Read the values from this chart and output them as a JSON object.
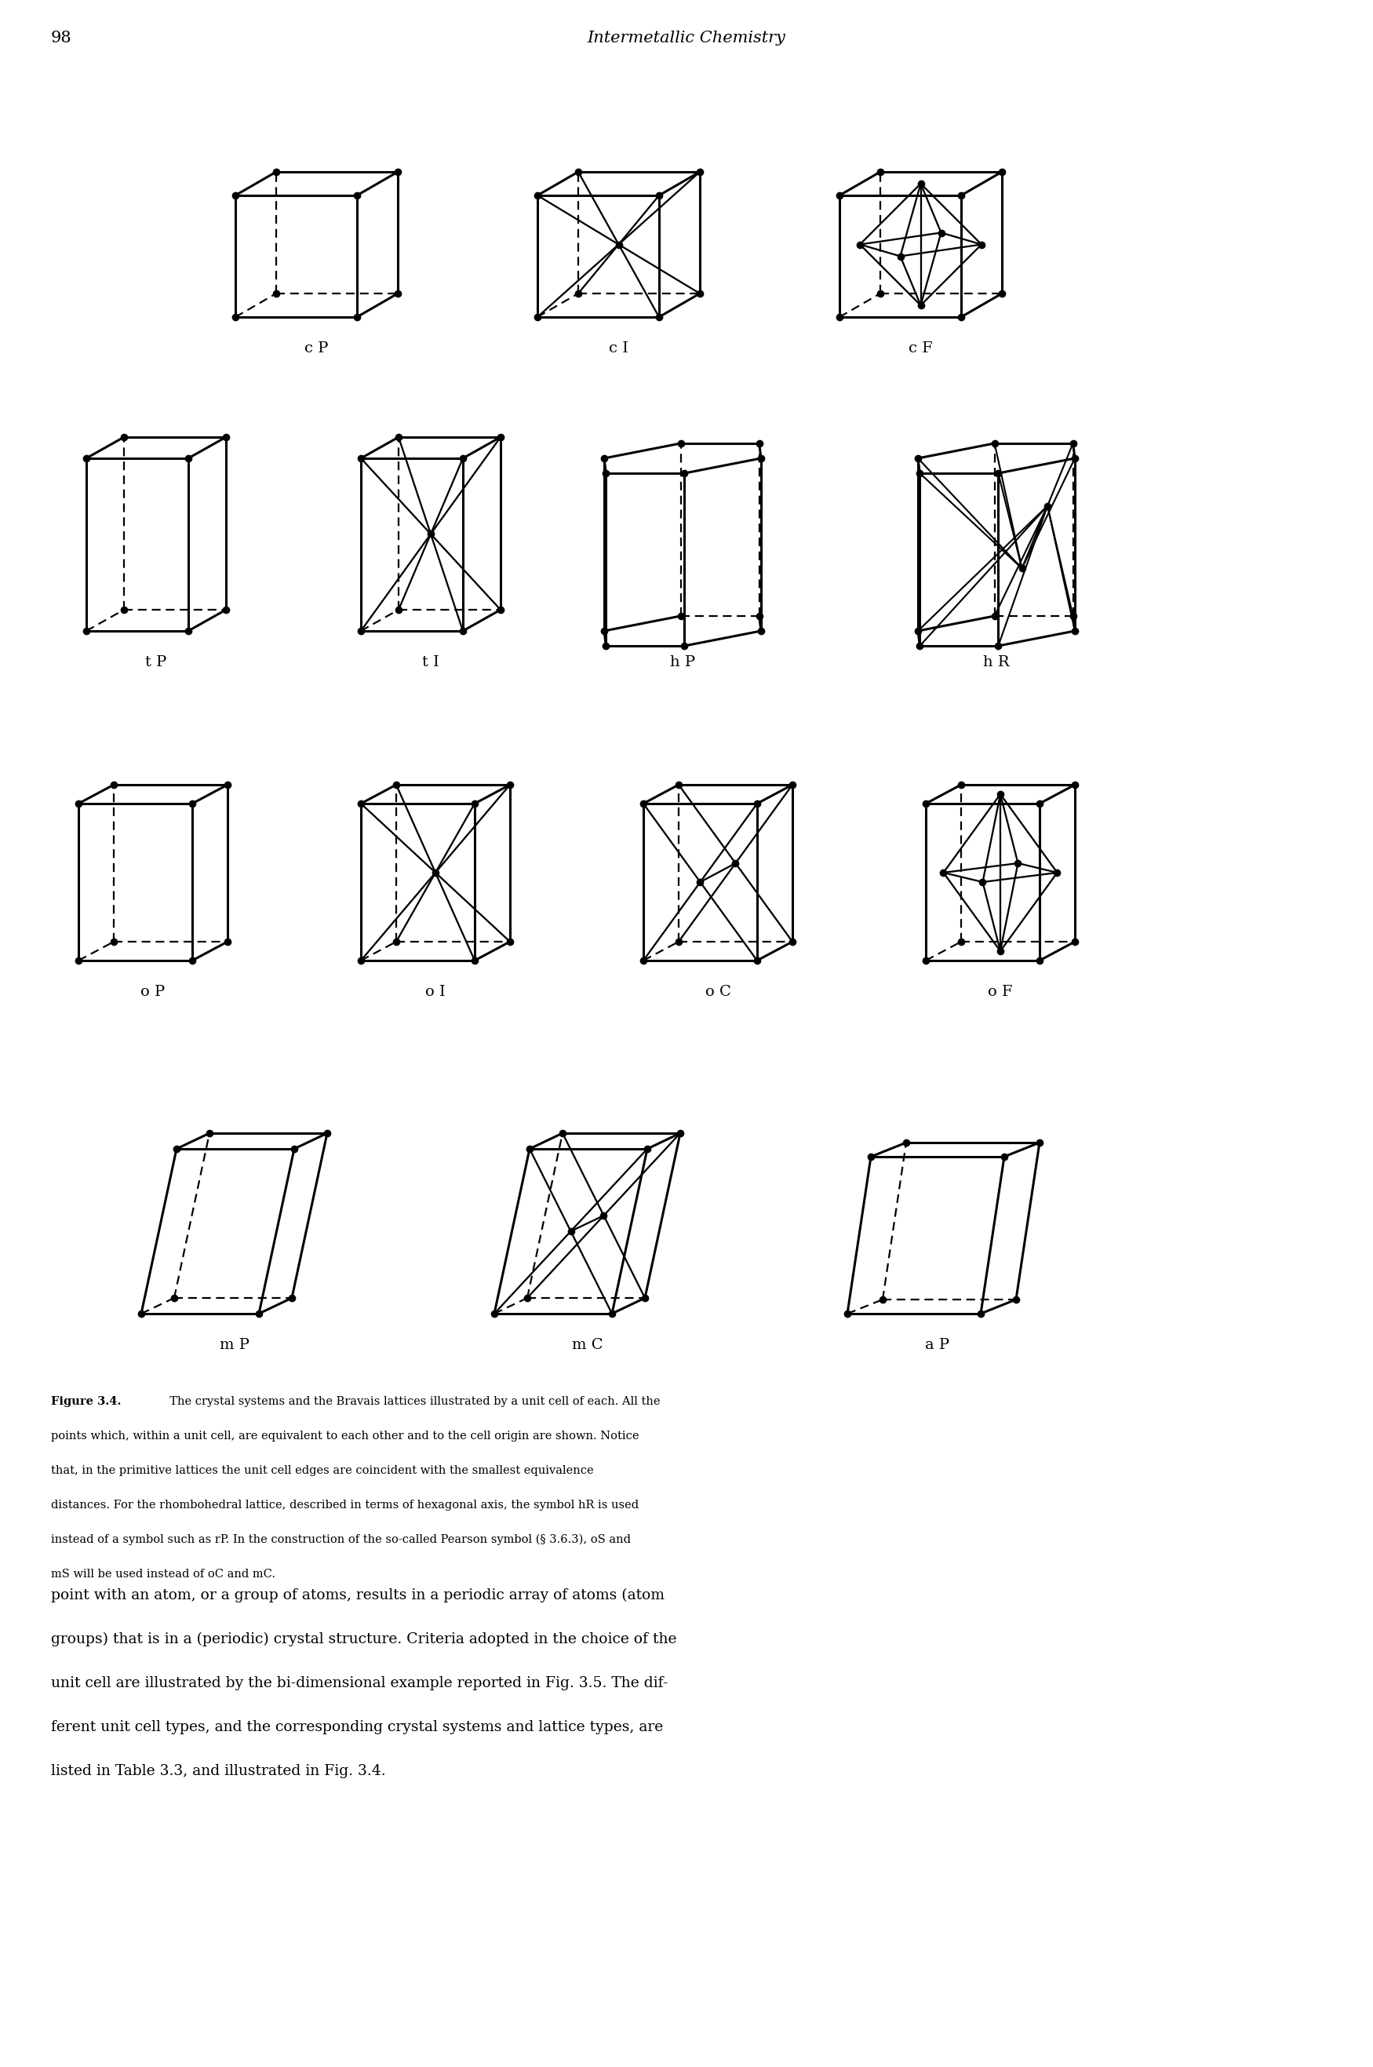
{
  "page_number": "98",
  "header_title": "Intermetallic Chemistry",
  "bg_color": "#ffffff",
  "dot_size": 7,
  "lw_solid": 2.2,
  "lw_dashed": 1.6,
  "cap_bold": "Figure 3.4.",
  "cap_rest": "  The crystal systems and the Bravais lattices illustrated by a unit cell of each. All the",
  "cap_lines": [
    "points which, within a unit cell, are equivalent to each other and to the cell origin are shown. Notice",
    "that, in the primitive lattices the unit cell edges are coincident with the smallest equivalence",
    "distances. For the rhombohedral lattice, described in terms of hexagonal axis, the symbol hR is used",
    "instead of a symbol such as rP. In the construction of the so-called Pearson symbol (§ 3.6.3), oS and",
    "mS will be used instead of oC and mC."
  ],
  "para_lines": [
    "point with an atom, or a group of atoms, results in a periodic array of atoms (atom",
    "groups) that is in a (periodic) crystal structure. Criteria adopted in the choice of the",
    "unit cell are illustrated by the bi-dimensional example reported in Fig. 3.5. The dif-",
    "ferent unit cell types, and the corresponding crystal systems and lattice types, are",
    "listed in Table 3.3, and illustrated in Fig. 3.4."
  ]
}
